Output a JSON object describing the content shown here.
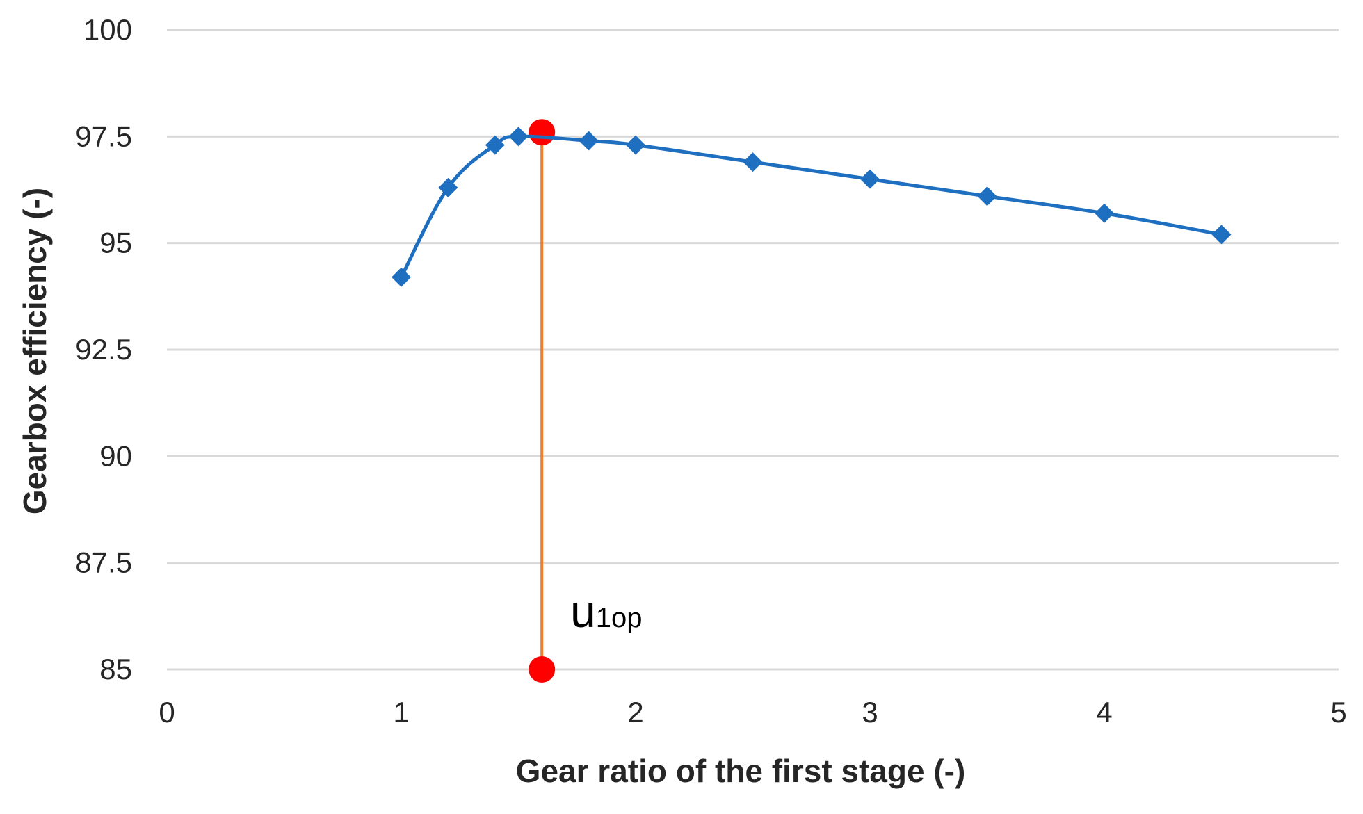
{
  "chart_data": {
    "type": "line",
    "xlabel": "Gear ratio of the first stage (-)",
    "ylabel": "Gearbox efficiency (-)",
    "xlim": [
      0,
      5
    ],
    "ylim": [
      85,
      100
    ],
    "x_ticks": [
      "0",
      "1",
      "2",
      "3",
      "4",
      "5"
    ],
    "y_ticks": [
      "85",
      "87.5",
      "90",
      "92.5",
      "95",
      "97.5",
      "100"
    ],
    "grid": "horizontal",
    "series": [
      {
        "color": "#1f6fc0",
        "marker": "diamond",
        "x": [
          1.0,
          1.2,
          1.4,
          1.5,
          1.8,
          2.0,
          2.5,
          3.0,
          3.5,
          4.0,
          4.5
        ],
        "y": [
          94.2,
          96.3,
          97.3,
          97.5,
          97.4,
          97.3,
          96.9,
          96.5,
          96.1,
          95.7,
          95.2
        ]
      }
    ],
    "optimum": {
      "x": 1.6,
      "y_top": 97.6,
      "y_bottom": 85,
      "line_color": "#ed7d31",
      "point_color": "#ff0000",
      "label_main": "u",
      "label_sub": "1op"
    }
  }
}
